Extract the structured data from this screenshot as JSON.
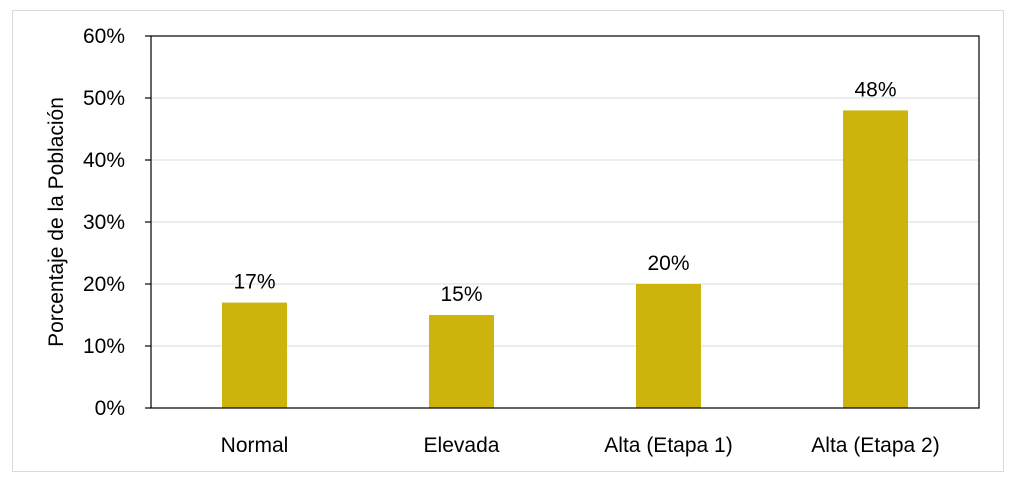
{
  "chart_data": {
    "type": "bar",
    "title": "",
    "xlabel": "",
    "ylabel": "Porcentaje de la Población",
    "categories": [
      "Normal",
      "Elevada",
      "Alta (Etapa 1)",
      "Alta (Etapa 2)"
    ],
    "values": [
      17,
      15,
      20,
      48
    ],
    "data_labels": [
      "17%",
      "15%",
      "20%",
      "48%"
    ],
    "ylim": [
      0,
      60
    ],
    "yticks": [
      0,
      10,
      20,
      30,
      40,
      50,
      60
    ],
    "ytick_labels": [
      "0%",
      "10%",
      "20%",
      "30%",
      "40%",
      "50%",
      "60%"
    ],
    "bar_color": "#CCB40C",
    "grid": true,
    "legend": "none"
  }
}
